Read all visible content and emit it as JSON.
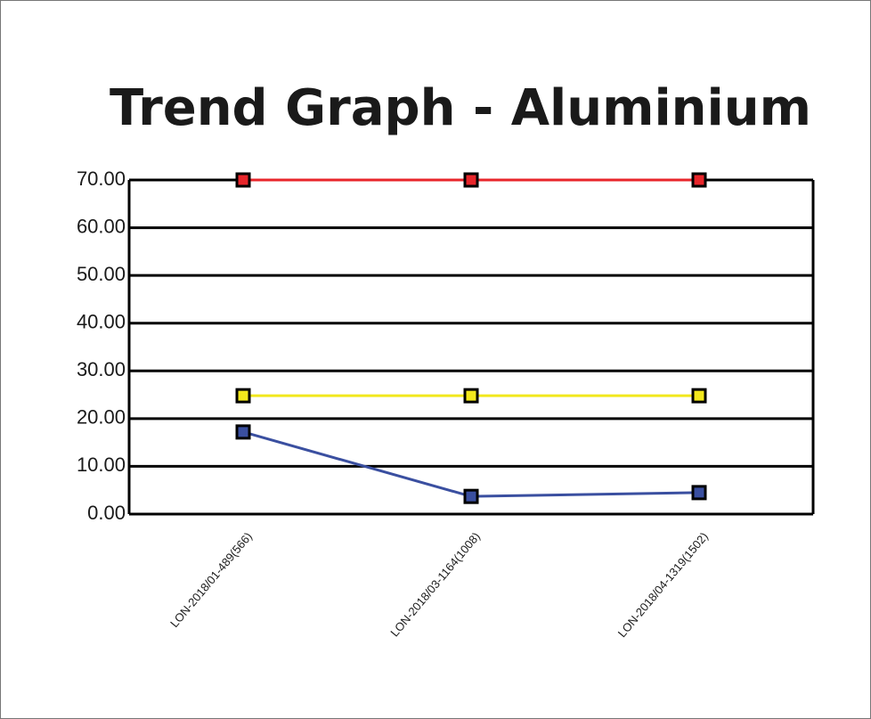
{
  "chart_data": {
    "type": "line",
    "title": "Trend Graph - Aluminium",
    "categories": [
      "LON-2018/01-489(566)",
      "LON-2018/03-1164(1008)",
      "LON-2018/04-1319(1502)"
    ],
    "series": [
      {
        "color": "#e8262b",
        "values": [
          70,
          70,
          70
        ]
      },
      {
        "color": "#f2e81c",
        "values": [
          24.8,
          24.8,
          24.8
        ]
      },
      {
        "color": "#3a4fa0",
        "values": [
          17.2,
          3.7,
          4.5
        ]
      }
    ],
    "ylim": [
      0,
      70
    ],
    "yticks": [
      {
        "value": 0,
        "label": "0.00"
      },
      {
        "value": 10,
        "label": "10.00"
      },
      {
        "value": 20,
        "label": "20.00"
      },
      {
        "value": 30,
        "label": "30.00"
      },
      {
        "value": 40,
        "label": "40.00"
      },
      {
        "value": 50,
        "label": "50.00"
      },
      {
        "value": 60,
        "label": "60.00"
      },
      {
        "value": 70,
        "label": "70.00"
      }
    ],
    "grid": true
  }
}
